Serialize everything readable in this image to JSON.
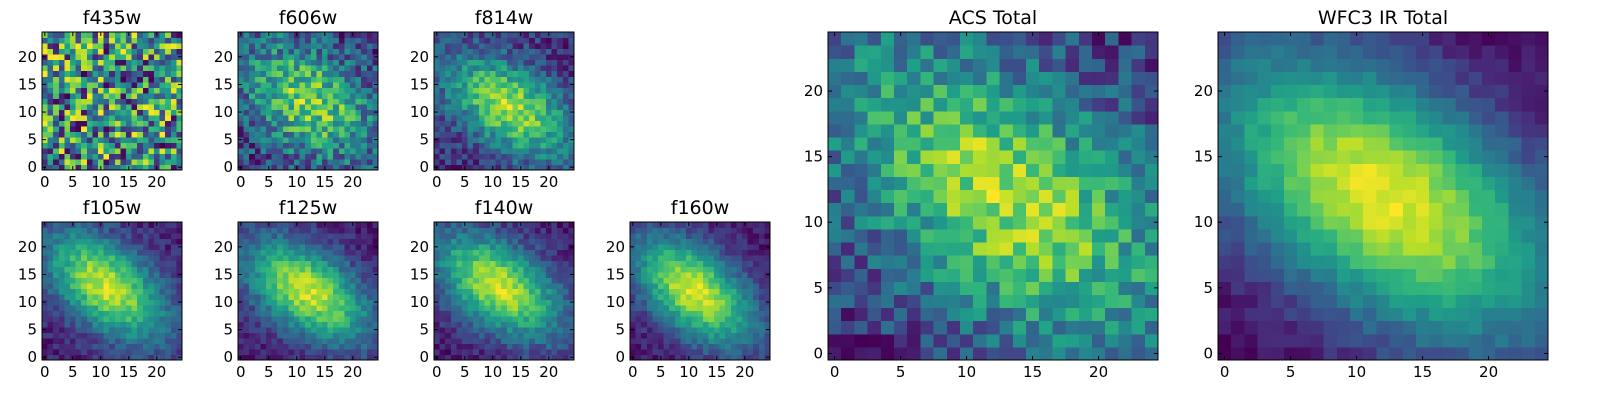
{
  "figure": {
    "colormap": "viridis",
    "colormap_stops": [
      "#440154",
      "#482878",
      "#3e4989",
      "#31688e",
      "#26828e",
      "#1f9e89",
      "#35b779",
      "#6ece58",
      "#b5de2b",
      "#fde725"
    ]
  },
  "chart_data": [
    {
      "type": "heatmap",
      "title": "f435w",
      "grid": [
        25,
        25
      ],
      "xticks": [
        0,
        5,
        10,
        15,
        20
      ],
      "yticks": [
        0,
        5,
        10,
        15,
        20
      ],
      "xlim": [
        0,
        24
      ],
      "ylim": [
        0,
        24
      ],
      "pattern": {
        "kind": "noise",
        "mean": 0.72,
        "noise": 0.22,
        "seed": 11
      }
    },
    {
      "type": "heatmap",
      "title": "f606w",
      "grid": [
        25,
        25
      ],
      "xticks": [
        0,
        5,
        10,
        15,
        20
      ],
      "yticks": [
        0,
        5,
        10,
        15,
        20
      ],
      "xlim": [
        0,
        24
      ],
      "ylim": [
        0,
        24
      ],
      "pattern": {
        "kind": "blob",
        "center": [
          12,
          12
        ],
        "sigma_major": 9,
        "sigma_minor": 6,
        "angle_deg": -35,
        "base": 0.45,
        "peak": 0.4,
        "noise": 0.16,
        "seed": 23
      }
    },
    {
      "type": "heatmap",
      "title": "f814w",
      "grid": [
        25,
        25
      ],
      "xticks": [
        0,
        5,
        10,
        15,
        20
      ],
      "yticks": [
        0,
        5,
        10,
        15,
        20
      ],
      "xlim": [
        0,
        24
      ],
      "ylim": [
        0,
        24
      ],
      "pattern": {
        "kind": "blob",
        "center": [
          13,
          11
        ],
        "sigma_major": 9,
        "sigma_minor": 5,
        "angle_deg": -35,
        "base": 0.3,
        "peak": 0.6,
        "noise": 0.13,
        "seed": 37
      }
    },
    {
      "type": "heatmap",
      "title": "f105w",
      "grid": [
        25,
        25
      ],
      "xticks": [
        0,
        5,
        10,
        15,
        20
      ],
      "yticks": [
        0,
        5,
        10,
        15,
        20
      ],
      "xlim": [
        0,
        24
      ],
      "ylim": [
        0,
        24
      ],
      "pattern": {
        "kind": "blob",
        "center": [
          11,
          13
        ],
        "sigma_major": 9,
        "sigma_minor": 5,
        "angle_deg": -40,
        "base": 0.22,
        "peak": 0.75,
        "noise": 0.09,
        "seed": 41
      }
    },
    {
      "type": "heatmap",
      "title": "f125w",
      "grid": [
        25,
        25
      ],
      "xticks": [
        0,
        5,
        10,
        15,
        20
      ],
      "yticks": [
        0,
        5,
        10,
        15,
        20
      ],
      "xlim": [
        0,
        24
      ],
      "ylim": [
        0,
        24
      ],
      "pattern": {
        "kind": "blob",
        "center": [
          12,
          12
        ],
        "sigma_major": 9,
        "sigma_minor": 5,
        "angle_deg": -35,
        "base": 0.2,
        "peak": 0.75,
        "noise": 0.09,
        "seed": 53
      }
    },
    {
      "type": "heatmap",
      "title": "f140w",
      "grid": [
        25,
        25
      ],
      "xticks": [
        0,
        5,
        10,
        15,
        20
      ],
      "yticks": [
        0,
        5,
        10,
        15,
        20
      ],
      "xlim": [
        0,
        24
      ],
      "ylim": [
        0,
        24
      ],
      "pattern": {
        "kind": "blob",
        "center": [
          11,
          13
        ],
        "sigma_major": 9,
        "sigma_minor": 5,
        "angle_deg": -35,
        "base": 0.2,
        "peak": 0.75,
        "noise": 0.09,
        "seed": 67
      }
    },
    {
      "type": "heatmap",
      "title": "f160w",
      "grid": [
        25,
        25
      ],
      "xticks": [
        0,
        5,
        10,
        15,
        20
      ],
      "yticks": [
        0,
        5,
        10,
        15,
        20
      ],
      "xlim": [
        0,
        24
      ],
      "ylim": [
        0,
        24
      ],
      "pattern": {
        "kind": "blob",
        "center": [
          11,
          12
        ],
        "sigma_major": 9,
        "sigma_minor": 5,
        "angle_deg": -40,
        "base": 0.18,
        "peak": 0.78,
        "noise": 0.08,
        "seed": 79
      }
    },
    {
      "type": "heatmap",
      "title": "ACS Total",
      "grid": [
        25,
        25
      ],
      "xticks": [
        0,
        5,
        10,
        15,
        20
      ],
      "yticks": [
        0,
        5,
        10,
        15,
        20
      ],
      "xlim": [
        0,
        24
      ],
      "ylim": [
        0,
        24
      ],
      "pattern": {
        "kind": "blob",
        "center": [
          13,
          12
        ],
        "sigma_major": 11,
        "sigma_minor": 6,
        "angle_deg": -40,
        "base": 0.4,
        "peak": 0.5,
        "noise": 0.13,
        "seed": 97
      }
    },
    {
      "type": "heatmap",
      "title": "WFC3 IR Total",
      "grid": [
        25,
        25
      ],
      "xticks": [
        0,
        5,
        10,
        15,
        20
      ],
      "yticks": [
        0,
        5,
        10,
        15,
        20
      ],
      "xlim": [
        0,
        24
      ],
      "ylim": [
        0,
        24
      ],
      "pattern": {
        "kind": "blob",
        "center": [
          12,
          12
        ],
        "sigma_major": 11,
        "sigma_minor": 6,
        "angle_deg": -35,
        "base": 0.12,
        "peak": 0.82,
        "noise": 0.05,
        "seed": 113
      }
    }
  ]
}
